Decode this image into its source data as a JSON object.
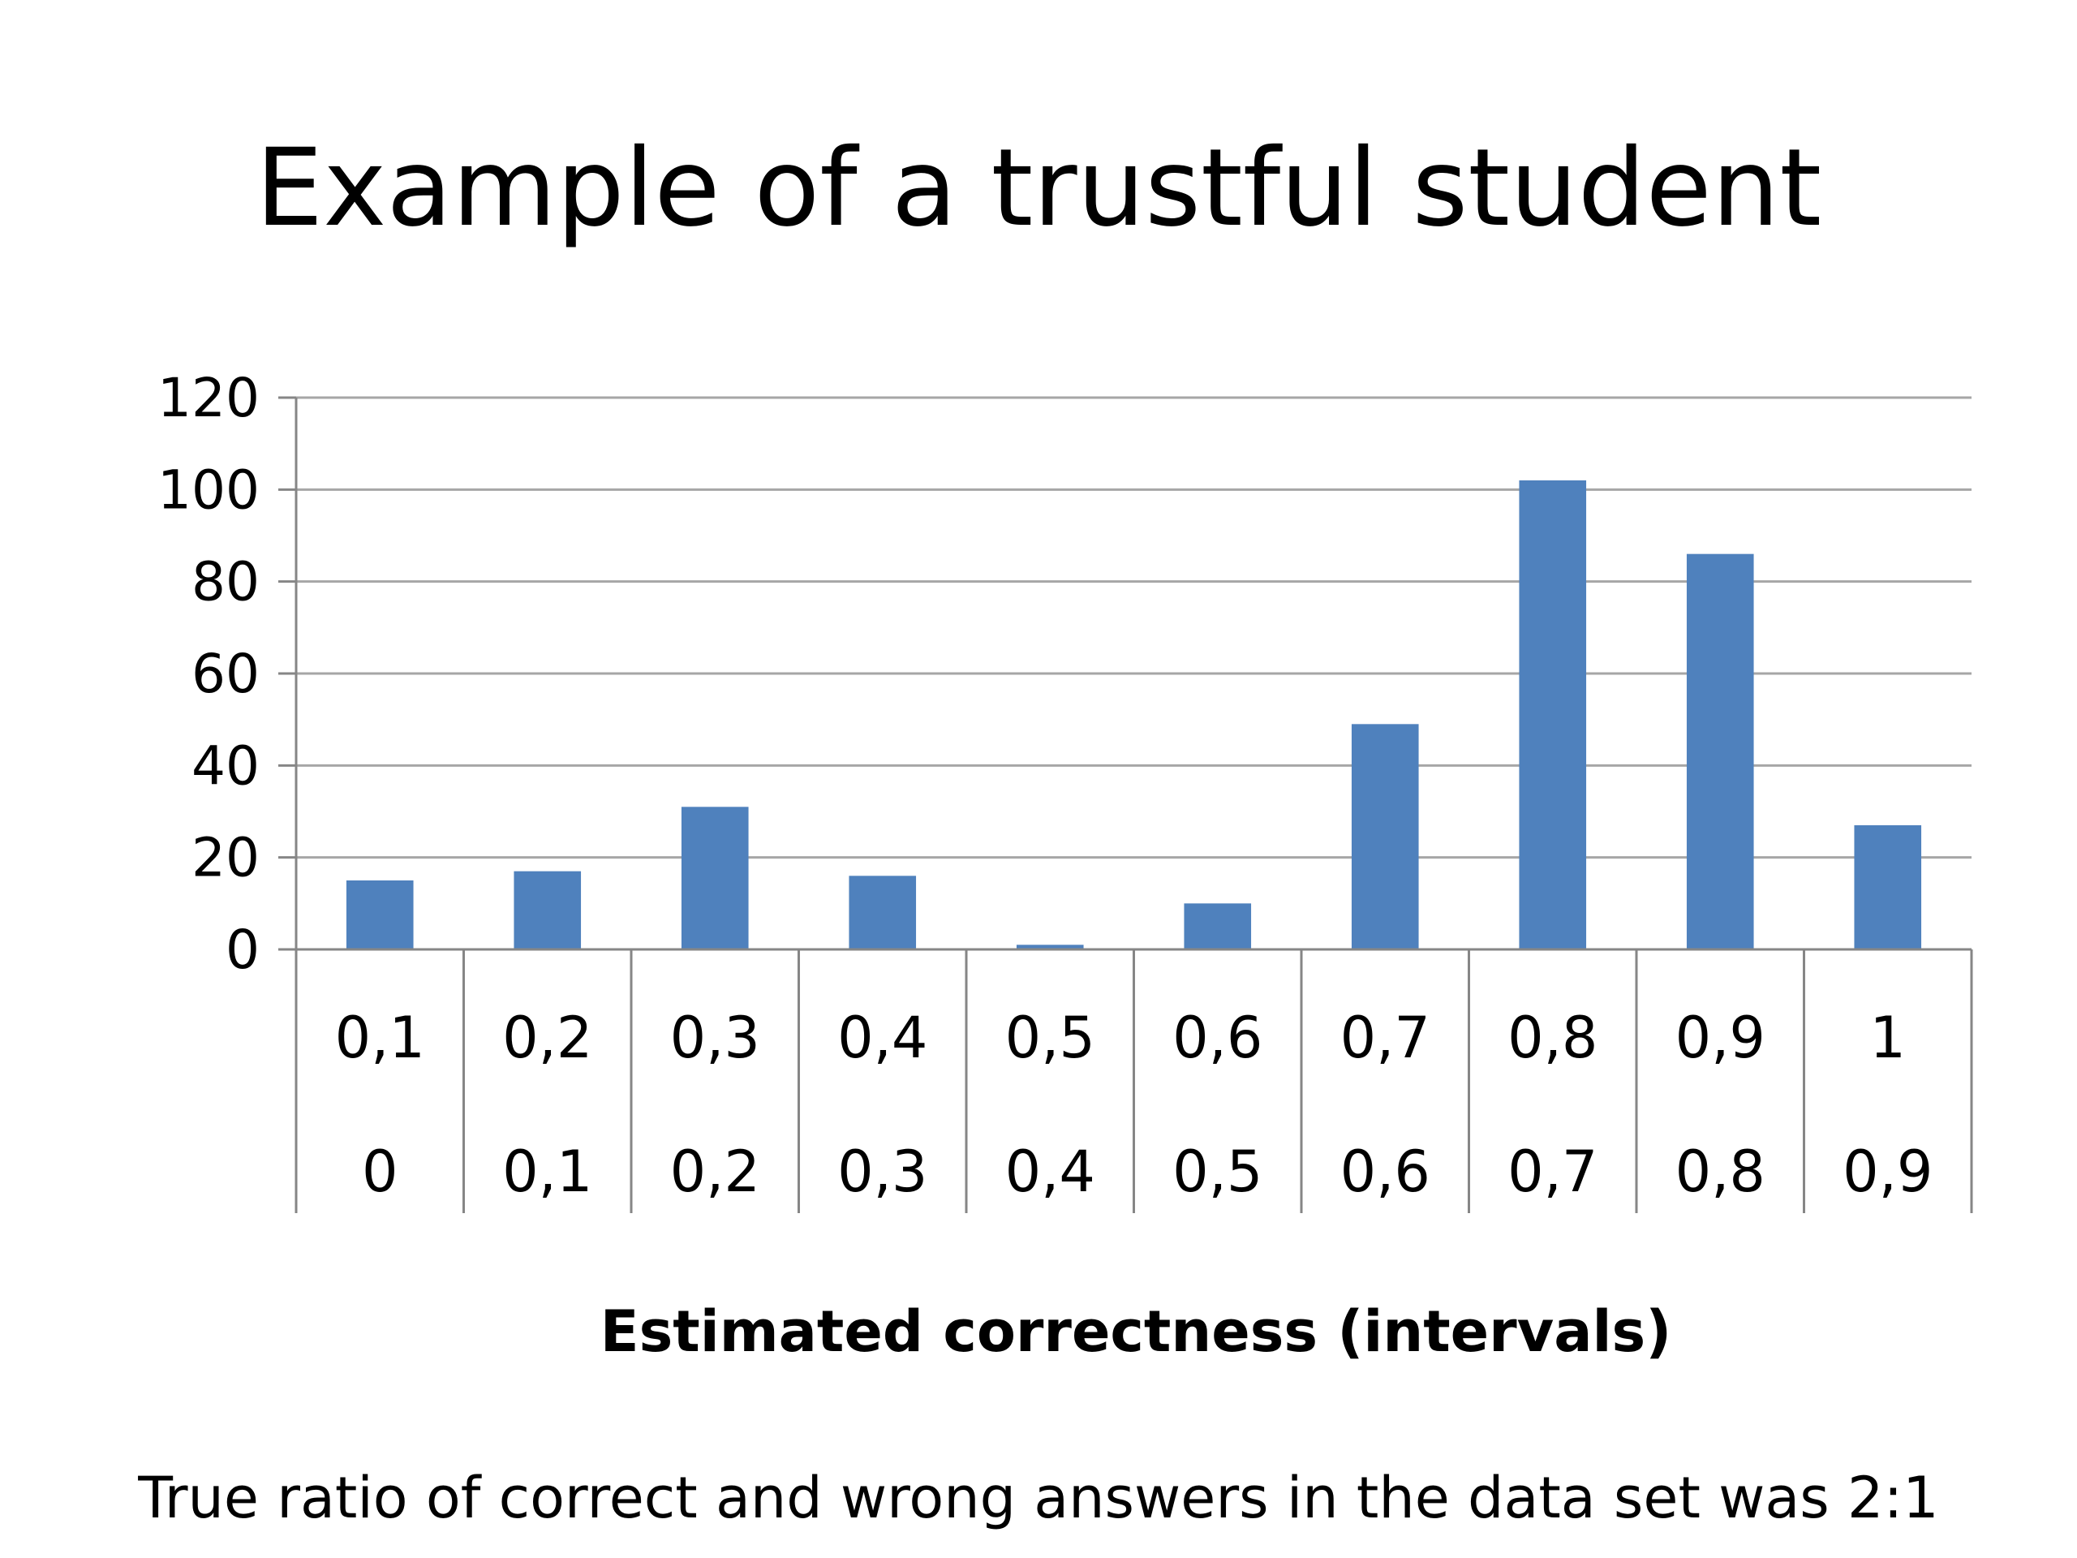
{
  "slide": {
    "title": "Example of a trustful student",
    "footnote": "True ratio of correct and wrong answers in the data set was 2:1"
  },
  "chart_data": {
    "type": "bar",
    "categories": [
      {
        "upper": "0,1",
        "lower": "0"
      },
      {
        "upper": "0,2",
        "lower": "0,1"
      },
      {
        "upper": "0,3",
        "lower": "0,2"
      },
      {
        "upper": "0,4",
        "lower": "0,3"
      },
      {
        "upper": "0,5",
        "lower": "0,4"
      },
      {
        "upper": "0,6",
        "lower": "0,5"
      },
      {
        "upper": "0,7",
        "lower": "0,6"
      },
      {
        "upper": "0,8",
        "lower": "0,7"
      },
      {
        "upper": "0,9",
        "lower": "0,8"
      },
      {
        "upper": "1",
        "lower": "0,9"
      }
    ],
    "values": [
      15,
      17,
      31,
      16,
      1,
      10,
      49,
      102,
      86,
      27
    ],
    "xlabel": "Estimated correctness (intervals)",
    "ylabel": "",
    "ylim": [
      0,
      120
    ],
    "yticks": [
      0,
      20,
      40,
      60,
      80,
      100,
      120
    ],
    "grid": true,
    "legend": "none",
    "colors": {
      "bar": "#4F81BD",
      "grid": "#A6A6A6",
      "axis": "#868686"
    }
  }
}
